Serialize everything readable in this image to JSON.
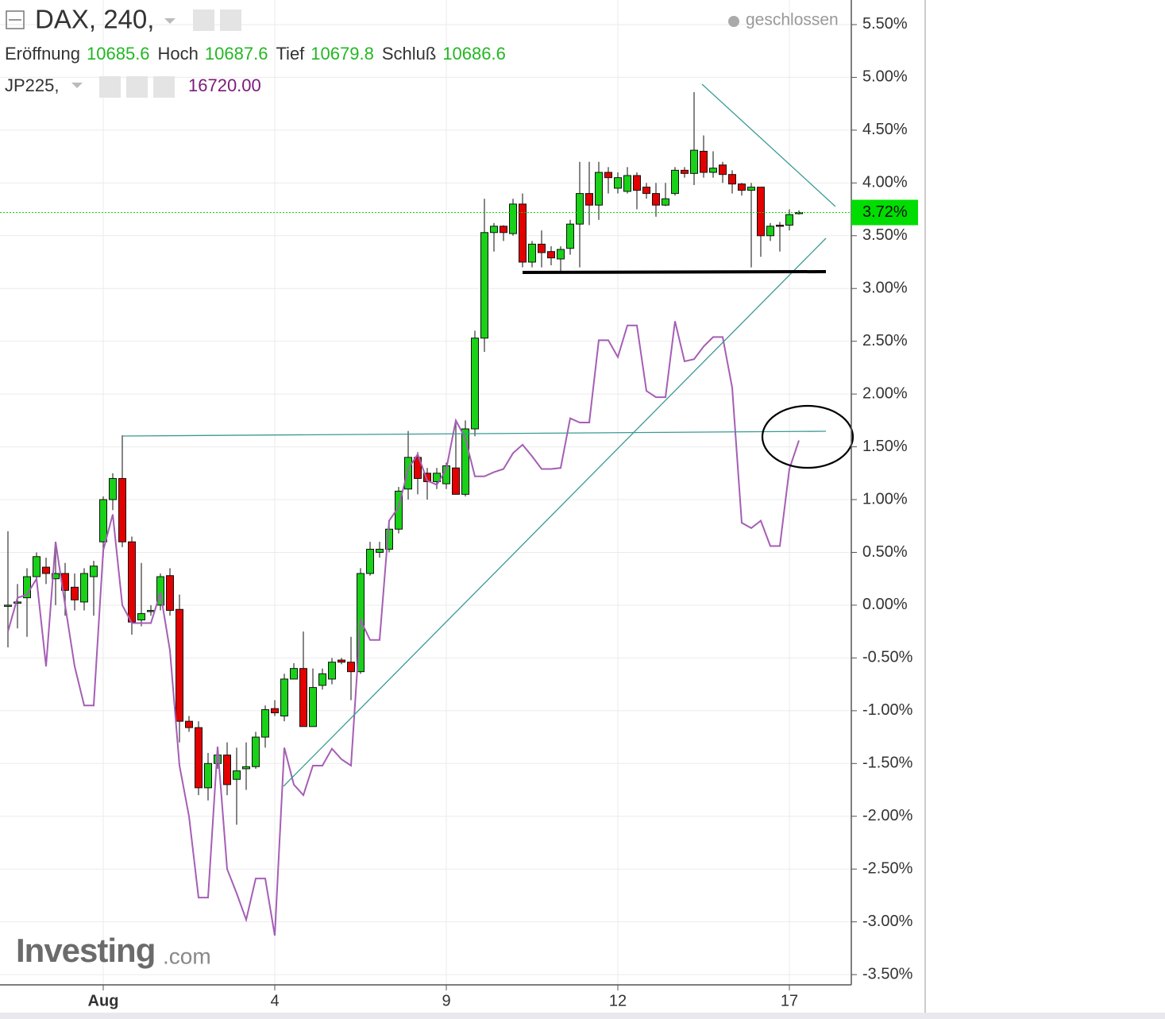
{
  "chart_data": {
    "type": "candlestick",
    "header": {
      "symbol": "DAX, 240,",
      "status": "geschlossen",
      "ohlc_labels": [
        "Eröffnung",
        "Hoch",
        "Tief",
        "Schluß"
      ],
      "ohlc_values": [
        10685.6,
        10687.6,
        10679.8,
        10686.6
      ],
      "compare_value": {
        "value": 16720,
        "label": "16720.00"
      },
      "logo": "Investing",
      "logo_suffix": ".com"
    },
    "categories": [
      null,
      null,
      null,
      null,
      null,
      null,
      null,
      null,
      null,
      null,
      "Aug",
      null,
      null,
      null,
      null,
      null,
      null,
      null,
      null,
      null,
      null,
      null,
      null,
      null,
      null,
      null,
      null,
      null,
      "4",
      null,
      null,
      null,
      null,
      null,
      null,
      null,
      null,
      null,
      null,
      null,
      null,
      null,
      null,
      null,
      null,
      null,
      "9",
      null,
      null,
      null,
      null,
      null,
      null,
      null,
      null,
      null,
      null,
      null,
      null,
      null,
      null,
      null,
      null,
      null,
      "12",
      null,
      null,
      null,
      null,
      null,
      null,
      null,
      null,
      null,
      null,
      null,
      null,
      null,
      null,
      null,
      null,
      null,
      "17",
      null
    ],
    "series": [
      {
        "name": "DAX, 240,",
        "up_color": "#19d119",
        "down_color": "#e30000",
        "open": [
          -0.01,
          0.02,
          0.07,
          0.27,
          0.36,
          0.25,
          0.3,
          0.17,
          0.03,
          0.27,
          0.6,
          1.0,
          1.2,
          0.6,
          -0.14,
          -0.05,
          0.0,
          0.28,
          -0.04,
          -1.1,
          -1.16,
          -1.73,
          -1.5,
          -1.42,
          -1.65,
          -1.55,
          -1.53,
          -1.25,
          -0.98,
          -1.05,
          -0.7,
          -0.6,
          -1.15,
          -0.76,
          -0.7,
          -0.52,
          -0.54,
          -0.63,
          0.3,
          0.5,
          0.53,
          0.72,
          1.1,
          1.4,
          1.25,
          1.17,
          1.15,
          1.3,
          1.05,
          1.67,
          2.53,
          3.53,
          3.59,
          3.52,
          3.8,
          3.25,
          3.42,
          3.35,
          3.28,
          3.38,
          3.61,
          3.9,
          3.79,
          4.1,
          3.95,
          3.92,
          4.07,
          3.96,
          3.9,
          3.79,
          3.9,
          4.12,
          4.09,
          4.3,
          4.1,
          4.17,
          4.08,
          3.99,
          3.93,
          3.96,
          3.5,
          3.6,
          3.6,
          3.71
        ],
        "high": [
          0.7,
          0.2,
          0.35,
          0.5,
          0.45,
          0.6,
          0.4,
          0.3,
          0.35,
          0.42,
          1.03,
          1.25,
          1.61,
          0.65,
          0.4,
          0.0,
          0.3,
          0.35,
          0.1,
          -1.05,
          -1.1,
          -1.4,
          -1.35,
          -1.3,
          -1.35,
          -1.3,
          -1.2,
          -0.95,
          -0.9,
          -0.65,
          -0.55,
          -0.25,
          -0.6,
          -0.6,
          -0.5,
          -0.5,
          -0.3,
          0.35,
          0.6,
          0.6,
          0.8,
          1.12,
          1.65,
          1.45,
          1.3,
          1.3,
          1.35,
          1.75,
          1.75,
          2.6,
          3.85,
          3.62,
          3.6,
          3.85,
          3.9,
          3.45,
          3.55,
          3.4,
          3.4,
          3.65,
          4.2,
          4.2,
          4.2,
          4.15,
          4.1,
          4.15,
          4.1,
          4.0,
          4.0,
          4.0,
          4.15,
          4.15,
          4.86,
          4.45,
          4.3,
          4.2,
          4.12,
          4.0,
          4.0,
          3.96,
          3.62,
          3.63,
          3.75,
          3.74
        ],
        "low": [
          -0.4,
          -0.22,
          -0.3,
          0.25,
          0.2,
          0.0,
          -0.1,
          -0.05,
          -0.05,
          -0.1,
          0.45,
          0.9,
          0.55,
          -0.28,
          -0.2,
          -0.1,
          -0.05,
          -0.1,
          -1.3,
          -1.2,
          -1.8,
          -1.85,
          -1.55,
          -1.8,
          -2.08,
          -1.75,
          -1.55,
          -1.35,
          -1.05,
          -1.1,
          -0.7,
          -1.15,
          -1.15,
          -0.8,
          -0.75,
          -0.56,
          -0.9,
          -0.65,
          0.28,
          0.45,
          0.5,
          0.68,
          1.0,
          1.05,
          1.0,
          1.1,
          1.1,
          1.05,
          1.03,
          1.6,
          2.4,
          3.35,
          3.45,
          3.5,
          3.2,
          3.2,
          3.2,
          3.22,
          3.15,
          3.32,
          3.2,
          3.6,
          3.65,
          3.9,
          3.9,
          3.9,
          3.75,
          3.85,
          3.68,
          3.78,
          3.88,
          4.05,
          3.98,
          4.05,
          4.05,
          4.0,
          3.9,
          3.88,
          3.2,
          3.3,
          3.45,
          3.35,
          3.55,
          3.7
        ],
        "close": [
          0.0,
          0.03,
          0.27,
          0.46,
          0.3,
          0.3,
          0.14,
          0.05,
          0.3,
          0.37,
          1.0,
          1.2,
          0.6,
          -0.16,
          -0.08,
          -0.05,
          0.27,
          -0.05,
          -1.1,
          -1.16,
          -1.73,
          -1.5,
          -1.42,
          -1.7,
          -1.57,
          -1.53,
          -1.25,
          -0.99,
          -1.02,
          -0.7,
          -0.6,
          -1.15,
          -0.78,
          -0.65,
          -0.54,
          -0.54,
          -0.63,
          0.3,
          0.53,
          0.53,
          0.72,
          1.08,
          1.4,
          1.2,
          1.17,
          1.25,
          1.32,
          1.05,
          1.67,
          2.53,
          3.53,
          3.59,
          3.53,
          3.8,
          3.25,
          3.42,
          3.34,
          3.29,
          3.37,
          3.61,
          3.9,
          3.79,
          4.1,
          4.05,
          4.05,
          4.07,
          3.93,
          3.9,
          3.79,
          3.85,
          4.12,
          4.09,
          4.31,
          4.1,
          4.14,
          4.08,
          3.99,
          3.93,
          3.96,
          3.5,
          3.59,
          3.59,
          3.7,
          3.72
        ]
      },
      {
        "name": "JP225,",
        "color": "#a55eb5",
        "values": [
          -0.25,
          0.07,
          0.1,
          0.25,
          -0.58,
          0.6,
          0.0,
          -0.58,
          -0.95,
          -0.95,
          0.52,
          0.86,
          0.0,
          -0.17,
          -0.17,
          -0.17,
          0.12,
          -0.43,
          -1.52,
          -2.0,
          -2.77,
          -2.77,
          -1.34,
          -2.5,
          -2.73,
          -2.98,
          -2.59,
          -2.59,
          -3.13,
          -1.35,
          -1.7,
          -1.8,
          -1.52,
          -1.52,
          -1.36,
          -1.46,
          -1.52,
          -0.14,
          -0.33,
          -0.33,
          0.8,
          0.93,
          1.29,
          1.43,
          1.18,
          1.14,
          1.29,
          1.75,
          1.58,
          1.22,
          1.22,
          1.26,
          1.29,
          1.44,
          1.52,
          1.41,
          1.29,
          1.29,
          1.3,
          1.77,
          1.73,
          1.73,
          2.51,
          2.51,
          2.35,
          2.65,
          2.65,
          2.03,
          1.97,
          1.97,
          2.69,
          2.31,
          2.33,
          2.45,
          2.54,
          2.54,
          2.06,
          0.78,
          0.73,
          0.8,
          0.56,
          0.56,
          1.29,
          1.56
        ]
      }
    ],
    "current": {
      "value": 3.72,
      "label": "3.72%",
      "color": "#00dd00"
    },
    "ylim": [
      -3.597,
      5.733
    ],
    "yticks": [
      {
        "value": 5.5,
        "label": "5.50%"
      },
      {
        "value": 5,
        "label": "5.00%"
      },
      {
        "value": 4.5,
        "label": "4.50%"
      },
      {
        "value": 4,
        "label": "4.00%"
      },
      {
        "value": 3.5,
        "label": "3.50%"
      },
      {
        "value": 3,
        "label": "3.00%"
      },
      {
        "value": 2.5,
        "label": "2.50%"
      },
      {
        "value": 2,
        "label": "2.00%"
      },
      {
        "value": 1.5,
        "label": "1.50%"
      },
      {
        "value": 1,
        "label": "1.00%"
      },
      {
        "value": 0.5,
        "label": "0.50%"
      },
      {
        "value": 0,
        "label": "0.00%"
      },
      {
        "value": -0.5,
        "label": "-0.50%"
      },
      {
        "value": -1,
        "label": "-1.00%"
      },
      {
        "value": -1.5,
        "label": "-1.50%"
      },
      {
        "value": -2,
        "label": "-2.00%"
      },
      {
        "value": -2.5,
        "label": "-2.50%"
      },
      {
        "value": -3,
        "label": "-3.00%"
      },
      {
        "value": -3.5,
        "label": "-3.50%"
      }
    ],
    "grid": true
  }
}
